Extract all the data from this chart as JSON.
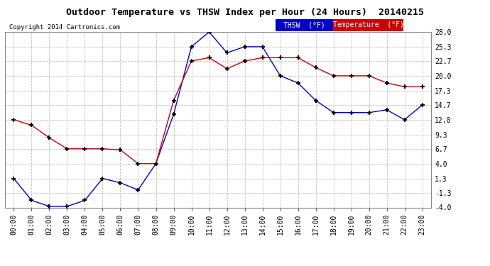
{
  "title": "Outdoor Temperature vs THSW Index per Hour (24 Hours)  20140215",
  "copyright": "Copyright 2014 Cartronics.com",
  "background_color": "#ffffff",
  "plot_bg_color": "#ffffff",
  "grid_color": "#bbbbbb",
  "hours": [
    "00:00",
    "01:00",
    "02:00",
    "03:00",
    "04:00",
    "05:00",
    "06:00",
    "07:00",
    "08:00",
    "09:00",
    "10:00",
    "11:00",
    "12:00",
    "13:00",
    "14:00",
    "15:00",
    "16:00",
    "17:00",
    "18:00",
    "19:00",
    "20:00",
    "21:00",
    "22:00",
    "23:00"
  ],
  "thsw": [
    1.3,
    -2.7,
    -3.8,
    -3.8,
    -2.7,
    1.3,
    0.5,
    -0.8,
    4.0,
    13.0,
    25.3,
    28.0,
    24.2,
    25.3,
    25.3,
    20.0,
    18.7,
    15.5,
    13.3,
    13.3,
    13.3,
    13.8,
    12.0,
    14.7
  ],
  "temp": [
    12.0,
    11.0,
    8.7,
    6.7,
    6.7,
    6.7,
    6.5,
    4.0,
    4.0,
    15.5,
    22.7,
    23.3,
    21.3,
    22.7,
    23.3,
    23.3,
    23.3,
    21.5,
    20.0,
    20.0,
    20.0,
    18.7,
    18.0,
    18.0
  ],
  "thsw_color": "#0000dd",
  "temp_color": "#cc0000",
  "yticks": [
    -4.0,
    -1.3,
    1.3,
    4.0,
    6.7,
    9.3,
    12.0,
    14.7,
    17.3,
    20.0,
    22.7,
    25.3,
    28.0
  ],
  "ylim": [
    -4.0,
    28.0
  ],
  "legend_thsw_bg": "#0000cc",
  "legend_temp_bg": "#cc0000",
  "legend_thsw_text": "THSW  (°F)",
  "legend_temp_text": "Temperature  (°F)"
}
